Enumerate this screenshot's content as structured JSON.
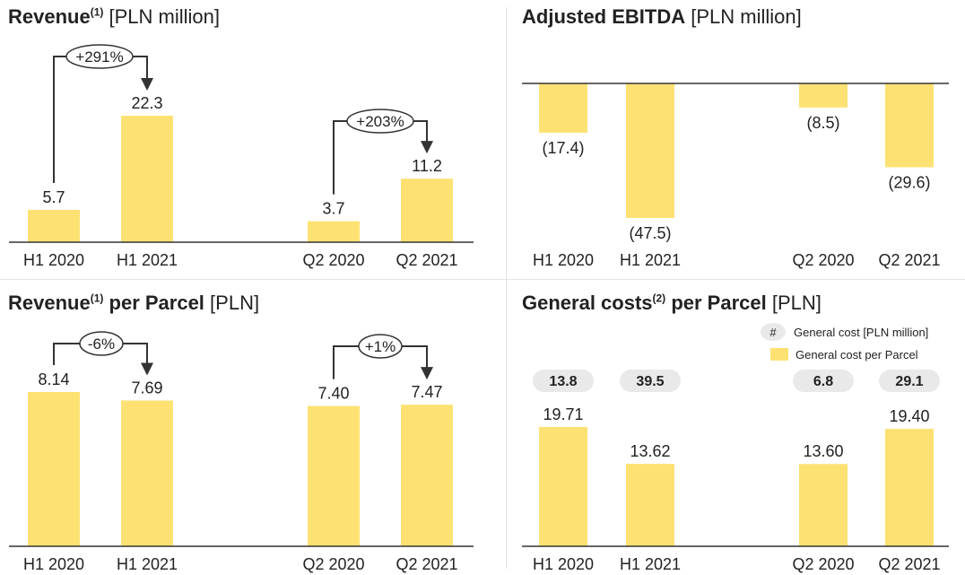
{
  "colors": {
    "bar": "#fde273",
    "axis": "#333333",
    "text": "#222222",
    "pill": "#e9e9e9",
    "arrow": "#333333"
  },
  "chart_data": [
    {
      "type": "bar",
      "title": "Revenue",
      "title_sup": "(1)",
      "title_unit": "[PLN million]",
      "categories": [
        "H1 2020",
        "H1 2021",
        "Q2 2020",
        "Q2 2021"
      ],
      "values": [
        5.7,
        22.3,
        3.7,
        11.2
      ],
      "value_labels": [
        "5.7",
        "22.3",
        "3.7",
        "11.2"
      ],
      "ylim": [
        0,
        22.3
      ],
      "annotations": [
        {
          "from": 0,
          "to": 1,
          "label": "+291%"
        },
        {
          "from": 2,
          "to": 3,
          "label": "+203%"
        }
      ]
    },
    {
      "type": "bar",
      "title": "Adjusted EBITDA",
      "title_sup": "",
      "title_unit": "[PLN million]",
      "categories": [
        "H1 2020",
        "H1 2021",
        "Q2 2020",
        "Q2 2021"
      ],
      "values": [
        -17.4,
        -47.5,
        -8.5,
        -29.6
      ],
      "value_labels": [
        "(17.4)",
        "(47.5)",
        "(8.5)",
        "(29.6)"
      ],
      "ylim": [
        -47.5,
        0
      ]
    },
    {
      "type": "bar",
      "title": "Revenue",
      "title_sup": "(1)",
      "title_suffix": "per Parcel",
      "title_unit": "[PLN]",
      "categories": [
        "H1 2020",
        "H1 2021",
        "Q2 2020",
        "Q2 2021"
      ],
      "values": [
        8.14,
        7.69,
        7.4,
        7.47
      ],
      "value_labels": [
        "8.14",
        "7.69",
        "7.40",
        "7.47"
      ],
      "ylim": [
        0,
        8.14
      ],
      "annotations": [
        {
          "from": 0,
          "to": 1,
          "label": "-6%"
        },
        {
          "from": 2,
          "to": 3,
          "label": "+1%"
        }
      ]
    },
    {
      "type": "bar",
      "title": "General costs",
      "title_sup": "(2)",
      "title_suffix": "per Parcel",
      "title_unit": "[PLN]",
      "categories": [
        "H1 2020",
        "H1 2021",
        "Q2 2020",
        "Q2 2021"
      ],
      "values": [
        19.71,
        13.62,
        13.6,
        19.4
      ],
      "value_labels": [
        "19.71",
        "13.62",
        "13.60",
        "19.40"
      ],
      "ylim": [
        0,
        19.71
      ],
      "pills": [
        "13.8",
        "39.5",
        "6.8",
        "29.1"
      ],
      "legend": [
        {
          "symbol": "#",
          "label": "General cost [PLN million]"
        },
        {
          "symbol": "",
          "label": "General cost per Parcel"
        }
      ]
    }
  ]
}
